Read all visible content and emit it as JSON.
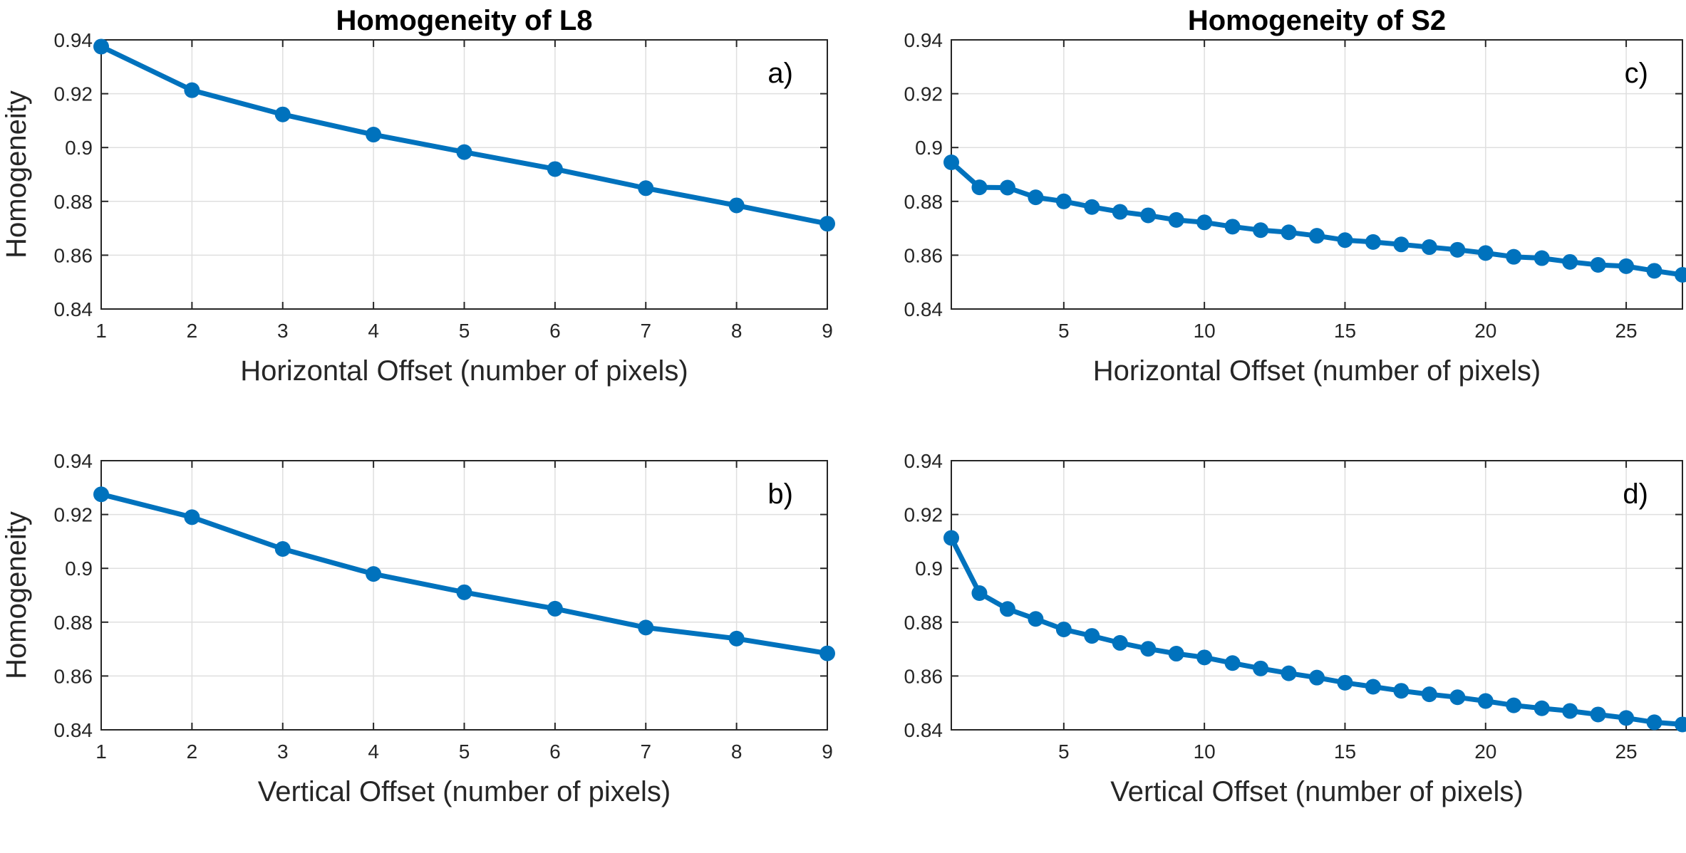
{
  "chart_data": [
    {
      "type": "line",
      "panel_label": "a)",
      "title": "Homogeneity of L8",
      "xlabel": "Horizontal Offset (number of pixels)",
      "ylabel": "Homogeneity",
      "xlim": [
        1,
        9
      ],
      "ylim": [
        0.84,
        0.94
      ],
      "xticks": [
        1,
        2,
        3,
        4,
        5,
        6,
        7,
        8,
        9
      ],
      "xtick_labels": [
        "1",
        "2",
        "3",
        "4",
        "5",
        "6",
        "7",
        "8",
        "9"
      ],
      "yticks": [
        0.84,
        0.86,
        0.88,
        0.9,
        0.92,
        0.94
      ],
      "ytick_labels": [
        "0.84",
        "0.86",
        "0.88",
        "0.9",
        "0.92",
        "0.94"
      ],
      "grid": true,
      "color": "#0072bd",
      "x": [
        1,
        2,
        3,
        4,
        5,
        6,
        7,
        8,
        9
      ],
      "y": [
        0.9375,
        0.9213,
        0.9123,
        0.9048,
        0.8983,
        0.892,
        0.8849,
        0.8785,
        0.8717
      ]
    },
    {
      "type": "line",
      "panel_label": "c)",
      "title": "Homogeneity of S2",
      "xlabel": "Horizontal Offset (number of pixels)",
      "ylabel": "",
      "xlim": [
        1,
        27
      ],
      "ylim": [
        0.84,
        0.94
      ],
      "xticks": [
        5,
        10,
        15,
        20,
        25
      ],
      "xtick_labels": [
        "5",
        "10",
        "15",
        "20",
        "25"
      ],
      "yticks": [
        0.84,
        0.86,
        0.88,
        0.9,
        0.92,
        0.94
      ],
      "ytick_labels": [
        "0.84",
        "0.86",
        "0.88",
        "0.9",
        "0.92",
        "0.94"
      ],
      "grid": true,
      "color": "#0072bd",
      "x": [
        1,
        2,
        3,
        4,
        5,
        6,
        7,
        8,
        9,
        10,
        11,
        12,
        13,
        14,
        15,
        16,
        17,
        18,
        19,
        20,
        21,
        22,
        23,
        24,
        25,
        26,
        27
      ],
      "y": [
        0.8945,
        0.8852,
        0.8851,
        0.8815,
        0.88,
        0.8779,
        0.8761,
        0.8748,
        0.8731,
        0.8722,
        0.8706,
        0.8693,
        0.8685,
        0.8672,
        0.8656,
        0.8649,
        0.864,
        0.863,
        0.862,
        0.8608,
        0.8594,
        0.8589,
        0.8575,
        0.8564,
        0.8559,
        0.8542,
        0.8527
      ]
    },
    {
      "type": "line",
      "panel_label": "b)",
      "title": "",
      "xlabel": "Vertical Offset (number of pixels)",
      "ylabel": "Homogeneity",
      "xlim": [
        1,
        9
      ],
      "ylim": [
        0.84,
        0.94
      ],
      "xticks": [
        1,
        2,
        3,
        4,
        5,
        6,
        7,
        8,
        9
      ],
      "xtick_labels": [
        "1",
        "2",
        "3",
        "4",
        "5",
        "6",
        "7",
        "8",
        "9"
      ],
      "yticks": [
        0.84,
        0.86,
        0.88,
        0.9,
        0.92,
        0.94
      ],
      "ytick_labels": [
        "0.84",
        "0.86",
        "0.88",
        "0.9",
        "0.92",
        "0.94"
      ],
      "grid": true,
      "color": "#0072bd",
      "x": [
        1,
        2,
        3,
        4,
        5,
        6,
        7,
        8,
        9
      ],
      "y": [
        0.9275,
        0.919,
        0.9072,
        0.8979,
        0.8911,
        0.885,
        0.878,
        0.8739,
        0.8684
      ]
    },
    {
      "type": "line",
      "panel_label": "d)",
      "title": "",
      "xlabel": "Vertical Offset (number of pixels)",
      "ylabel": "",
      "xlim": [
        1,
        27
      ],
      "ylim": [
        0.84,
        0.94
      ],
      "xticks": [
        5,
        10,
        15,
        20,
        25
      ],
      "xtick_labels": [
        "5",
        "10",
        "15",
        "20",
        "25"
      ],
      "yticks": [
        0.84,
        0.86,
        0.88,
        0.9,
        0.92,
        0.94
      ],
      "ytick_labels": [
        "0.84",
        "0.86",
        "0.88",
        "0.9",
        "0.92",
        "0.94"
      ],
      "grid": true,
      "color": "#0072bd",
      "x": [
        1,
        2,
        3,
        4,
        5,
        6,
        7,
        8,
        9,
        10,
        11,
        12,
        13,
        14,
        15,
        16,
        17,
        18,
        19,
        20,
        21,
        22,
        23,
        24,
        25,
        26,
        27
      ],
      "y": [
        0.9113,
        0.8908,
        0.8849,
        0.8812,
        0.8773,
        0.8749,
        0.8723,
        0.8701,
        0.8683,
        0.8669,
        0.8648,
        0.8628,
        0.861,
        0.8594,
        0.8575,
        0.856,
        0.8545,
        0.8532,
        0.8521,
        0.8507,
        0.8491,
        0.848,
        0.847,
        0.8457,
        0.8444,
        0.8428,
        0.842
      ]
    }
  ]
}
